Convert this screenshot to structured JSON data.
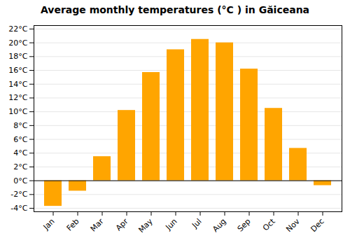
{
  "chart_data": {
    "type": "bar",
    "title": "Average monthly temperatures (°C ) in Găiceana",
    "categories": [
      "Jan",
      "Feb",
      "Mar",
      "Apr",
      "May",
      "Jun",
      "Jul",
      "Aug",
      "Sep",
      "Oct",
      "Nov",
      "Dec"
    ],
    "values": [
      -3.7,
      -1.5,
      3.5,
      10.2,
      15.7,
      19.0,
      20.5,
      20.0,
      16.2,
      10.5,
      4.7,
      -0.7
    ],
    "color": "#FFA500",
    "ylim": [
      -4.5,
      22.5
    ],
    "yticks": [
      {
        "value": -4,
        "label": "-4°C"
      },
      {
        "value": -2,
        "label": "-2°C"
      },
      {
        "value": 0,
        "label": "0°C"
      },
      {
        "value": 2,
        "label": "2°C"
      },
      {
        "value": 4,
        "label": "4°C"
      },
      {
        "value": 6,
        "label": "6°C"
      },
      {
        "value": 8,
        "label": "8°C"
      },
      {
        "value": 10,
        "label": "10°C"
      },
      {
        "value": 12,
        "label": "12°C"
      },
      {
        "value": 14,
        "label": "14°C"
      },
      {
        "value": 16,
        "label": "16°C"
      },
      {
        "value": 18,
        "label": "18°C"
      },
      {
        "value": 20,
        "label": "20°C"
      },
      {
        "value": 22,
        "label": "22°C"
      }
    ],
    "grid": true
  }
}
